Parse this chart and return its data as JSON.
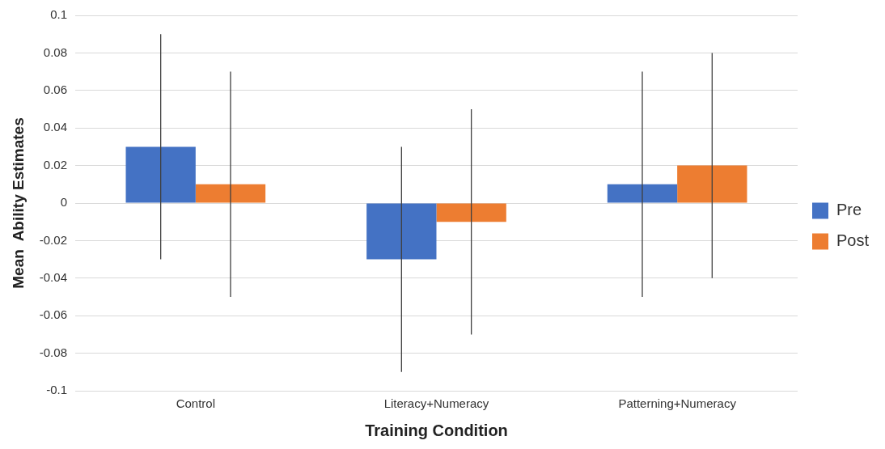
{
  "chart_data": {
    "type": "bar",
    "xlabel": "Training Condition",
    "ylabel": "Mean  Ability Estimates",
    "categories": [
      "Control",
      "Literacy+Numeracy",
      "Patterning+Numeracy"
    ],
    "series": [
      {
        "name": "Pre",
        "color": "#4472c4",
        "values": [
          0.03,
          -0.03,
          0.01
        ],
        "errors": [
          0.06,
          0.06,
          0.06
        ]
      },
      {
        "name": "Post",
        "color": "#ed7d31",
        "values": [
          0.01,
          -0.01,
          0.02
        ],
        "errors": [
          0.06,
          0.06,
          0.06
        ]
      }
    ],
    "ylim": [
      -0.1,
      0.1
    ],
    "yticks": [
      -0.1,
      -0.08,
      -0.06,
      -0.04,
      -0.02,
      0,
      0.02,
      0.04,
      0.06,
      0.08,
      0.1
    ],
    "grid": "y",
    "legend": "right"
  }
}
